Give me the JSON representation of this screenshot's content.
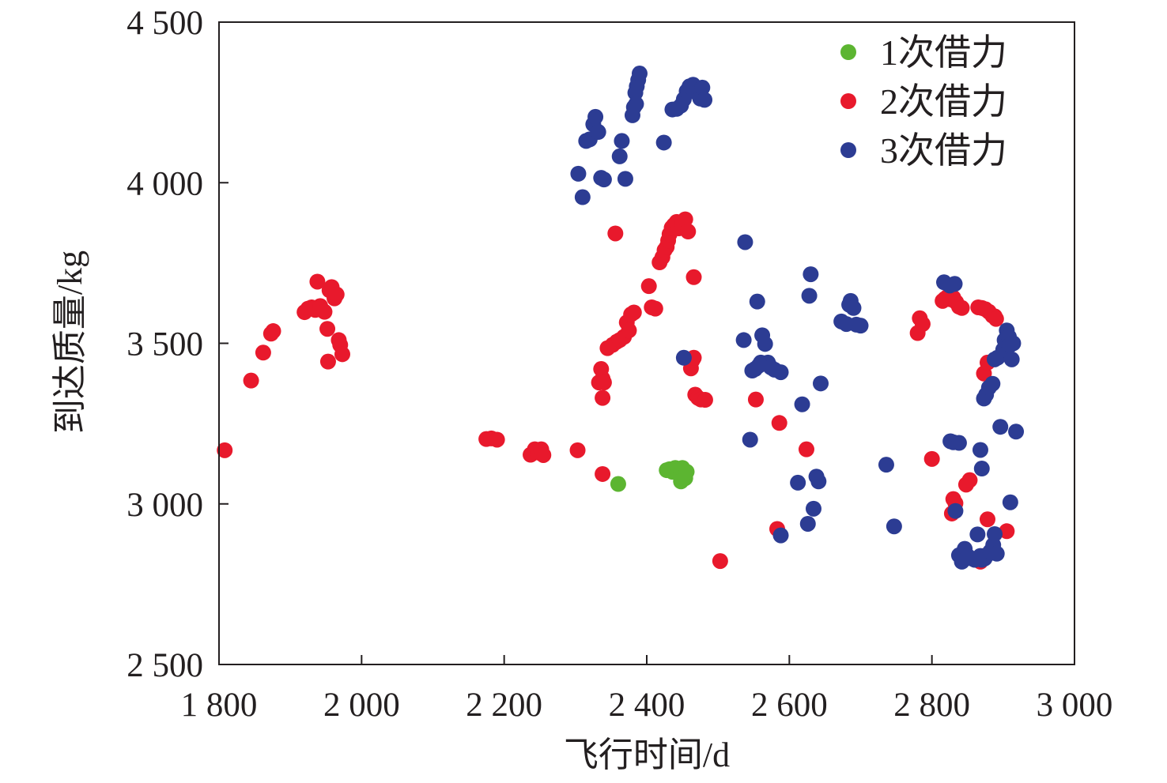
{
  "chart_data": {
    "type": "scatter",
    "xlabel": "飞行时间/d",
    "ylabel": "到达质量/kg",
    "xlim": [
      1800,
      3000
    ],
    "ylim": [
      2500,
      4500
    ],
    "x_ticks": [
      1800,
      2000,
      2200,
      2400,
      2600,
      2800,
      3000
    ],
    "x_tick_labels": [
      "1 800",
      "2 000",
      "2 200",
      "2 400",
      "2 600",
      "2 800",
      "3 000"
    ],
    "y_ticks": [
      2500,
      3000,
      3500,
      4000,
      4500
    ],
    "y_tick_labels": [
      "2 500",
      "3 000",
      "3 500",
      "4 000",
      "4 500"
    ],
    "grid": false,
    "legend_position": "top-right",
    "series": [
      {
        "name": "1次借力",
        "color": "#5cb531",
        "points": [
          [
            2360,
            3062
          ],
          [
            2428,
            3105
          ],
          [
            2432,
            3108
          ],
          [
            2436,
            3100
          ],
          [
            2440,
            3112
          ],
          [
            2444,
            3104
          ],
          [
            2448,
            3094
          ],
          [
            2450,
            3112
          ],
          [
            2452,
            3098
          ],
          [
            2448,
            3070
          ],
          [
            2454,
            3080
          ],
          [
            2456,
            3100
          ]
        ]
      },
      {
        "name": "2次借力",
        "color": "#e8192c",
        "points": [
          [
            1808,
            3167
          ],
          [
            1845,
            3384
          ],
          [
            1862,
            3471
          ],
          [
            1873,
            3530
          ],
          [
            1876,
            3538
          ],
          [
            1920,
            3597
          ],
          [
            1925,
            3608
          ],
          [
            1930,
            3612
          ],
          [
            1935,
            3604
          ],
          [
            1938,
            3692
          ],
          [
            1942,
            3616
          ],
          [
            1948,
            3598
          ],
          [
            1952,
            3545
          ],
          [
            1955,
            3665
          ],
          [
            1958,
            3675
          ],
          [
            1962,
            3640
          ],
          [
            1965,
            3652
          ],
          [
            1968,
            3510
          ],
          [
            1970,
            3495
          ],
          [
            1973,
            3466
          ],
          [
            1953,
            3443
          ],
          [
            2175,
            3202
          ],
          [
            2182,
            3204
          ],
          [
            2190,
            3200
          ],
          [
            2237,
            3153
          ],
          [
            2243,
            3170
          ],
          [
            2248,
            3160
          ],
          [
            2252,
            3170
          ],
          [
            2255,
            3152
          ],
          [
            2303,
            3167
          ],
          [
            2338,
            3093
          ],
          [
            2333,
            3378
          ],
          [
            2336,
            3420
          ],
          [
            2338,
            3390
          ],
          [
            2340,
            3378
          ],
          [
            2338,
            3330
          ],
          [
            2345,
            3485
          ],
          [
            2352,
            3495
          ],
          [
            2358,
            3505
          ],
          [
            2362,
            3510
          ],
          [
            2368,
            3520
          ],
          [
            2372,
            3565
          ],
          [
            2375,
            3540
          ],
          [
            2378,
            3590
          ],
          [
            2382,
            3596
          ],
          [
            2356,
            3842
          ],
          [
            2403,
            3678
          ],
          [
            2407,
            3612
          ],
          [
            2412,
            3608
          ],
          [
            2418,
            3752
          ],
          [
            2422,
            3768
          ],
          [
            2425,
            3790
          ],
          [
            2428,
            3800
          ],
          [
            2430,
            3820
          ],
          [
            2432,
            3840
          ],
          [
            2435,
            3860
          ],
          [
            2438,
            3868
          ],
          [
            2442,
            3878
          ],
          [
            2445,
            3858
          ],
          [
            2450,
            3873
          ],
          [
            2454,
            3886
          ],
          [
            2458,
            3848
          ],
          [
            2466,
            3706
          ],
          [
            2462,
            3422
          ],
          [
            2464,
            3447
          ],
          [
            2466,
            3455
          ],
          [
            2468,
            3340
          ],
          [
            2472,
            3330
          ],
          [
            2476,
            3325
          ],
          [
            2482,
            3324
          ],
          [
            2503,
            2822
          ],
          [
            2553,
            3325
          ],
          [
            2586,
            3252
          ],
          [
            2583,
            2922
          ],
          [
            2624,
            3170
          ],
          [
            2780,
            3532
          ],
          [
            2783,
            3578
          ],
          [
            2787,
            3560
          ],
          [
            2800,
            3140
          ],
          [
            2815,
            3632
          ],
          [
            2818,
            3638
          ],
          [
            2822,
            3645
          ],
          [
            2826,
            3637
          ],
          [
            2830,
            3642
          ],
          [
            2834,
            3628
          ],
          [
            2838,
            3614
          ],
          [
            2842,
            3610
          ],
          [
            2828,
            2970
          ],
          [
            2830,
            3015
          ],
          [
            2833,
            3002
          ],
          [
            2848,
            3060
          ],
          [
            2853,
            3074
          ],
          [
            2865,
            3612
          ],
          [
            2870,
            3610
          ],
          [
            2875,
            3606
          ],
          [
            2880,
            3598
          ],
          [
            2885,
            3586
          ],
          [
            2888,
            3584
          ],
          [
            2890,
            3576
          ],
          [
            2873,
            3406
          ],
          [
            2878,
            3440
          ],
          [
            2878,
            2952
          ],
          [
            2868,
            2820
          ],
          [
            2873,
            2838
          ],
          [
            2905,
            2915
          ]
        ]
      },
      {
        "name": "3次借力",
        "color": "#2c3c93",
        "points": [
          [
            2304,
            4028
          ],
          [
            2310,
            3955
          ],
          [
            2315,
            4130
          ],
          [
            2320,
            4135
          ],
          [
            2325,
            4182
          ],
          [
            2328,
            4205
          ],
          [
            2332,
            4158
          ],
          [
            2336,
            4015
          ],
          [
            2340,
            4010
          ],
          [
            2362,
            4082
          ],
          [
            2365,
            4130
          ],
          [
            2370,
            4012
          ],
          [
            2380,
            4210
          ],
          [
            2382,
            4235
          ],
          [
            2384,
            4280
          ],
          [
            2386,
            4300
          ],
          [
            2388,
            4320
          ],
          [
            2390,
            4340
          ],
          [
            2385,
            4245
          ],
          [
            2424,
            4125
          ],
          [
            2436,
            4228
          ],
          [
            2442,
            4230
          ],
          [
            2448,
            4240
          ],
          [
            2452,
            4260
          ],
          [
            2456,
            4285
          ],
          [
            2460,
            4300
          ],
          [
            2465,
            4305
          ],
          [
            2470,
            4280
          ],
          [
            2475,
            4262
          ],
          [
            2478,
            4296
          ],
          [
            2481,
            4258
          ],
          [
            2452,
            3455
          ],
          [
            2538,
            3815
          ],
          [
            2536,
            3510
          ],
          [
            2545,
            3200
          ],
          [
            2548,
            3415
          ],
          [
            2552,
            3420
          ],
          [
            2555,
            3630
          ],
          [
            2557,
            3430
          ],
          [
            2560,
            3440
          ],
          [
            2562,
            3525
          ],
          [
            2566,
            3498
          ],
          [
            2570,
            3440
          ],
          [
            2574,
            3425
          ],
          [
            2579,
            3418
          ],
          [
            2588,
            3410
          ],
          [
            2588,
            2902
          ],
          [
            2612,
            3066
          ],
          [
            2618,
            3310
          ],
          [
            2626,
            2938
          ],
          [
            2628,
            3648
          ],
          [
            2630,
            3715
          ],
          [
            2634,
            2985
          ],
          [
            2638,
            3085
          ],
          [
            2641,
            3070
          ],
          [
            2644,
            3375
          ],
          [
            2673,
            3568
          ],
          [
            2680,
            3560
          ],
          [
            2684,
            3620
          ],
          [
            2686,
            3632
          ],
          [
            2690,
            3610
          ],
          [
            2694,
            3558
          ],
          [
            2700,
            3555
          ],
          [
            2736,
            3122
          ],
          [
            2747,
            2930
          ],
          [
            2817,
            3690
          ],
          [
            2825,
            3680
          ],
          [
            2832,
            3685
          ],
          [
            2826,
            3195
          ],
          [
            2830,
            3192
          ],
          [
            2838,
            3190
          ],
          [
            2833,
            2978
          ],
          [
            2838,
            2840
          ],
          [
            2842,
            2820
          ],
          [
            2846,
            2860
          ],
          [
            2850,
            2838
          ],
          [
            2856,
            2830
          ],
          [
            2860,
            2826
          ],
          [
            2864,
            2905
          ],
          [
            2868,
            2838
          ],
          [
            2870,
            2826
          ],
          [
            2874,
            2830
          ],
          [
            2878,
            2842
          ],
          [
            2882,
            2852
          ],
          [
            2886,
            2872
          ],
          [
            2888,
            2906
          ],
          [
            2891,
            2845
          ],
          [
            2868,
            3168
          ],
          [
            2870,
            3110
          ],
          [
            2873,
            3328
          ],
          [
            2876,
            3340
          ],
          [
            2880,
            3362
          ],
          [
            2885,
            3374
          ],
          [
            2888,
            3450
          ],
          [
            2892,
            3455
          ],
          [
            2896,
            3240
          ],
          [
            2900,
            3480
          ],
          [
            2902,
            3510
          ],
          [
            2905,
            3540
          ],
          [
            2908,
            3520
          ],
          [
            2910,
            3495
          ],
          [
            2912,
            3450
          ],
          [
            2914,
            3500
          ],
          [
            2918,
            3225
          ],
          [
            2910,
            3005
          ]
        ]
      }
    ]
  }
}
